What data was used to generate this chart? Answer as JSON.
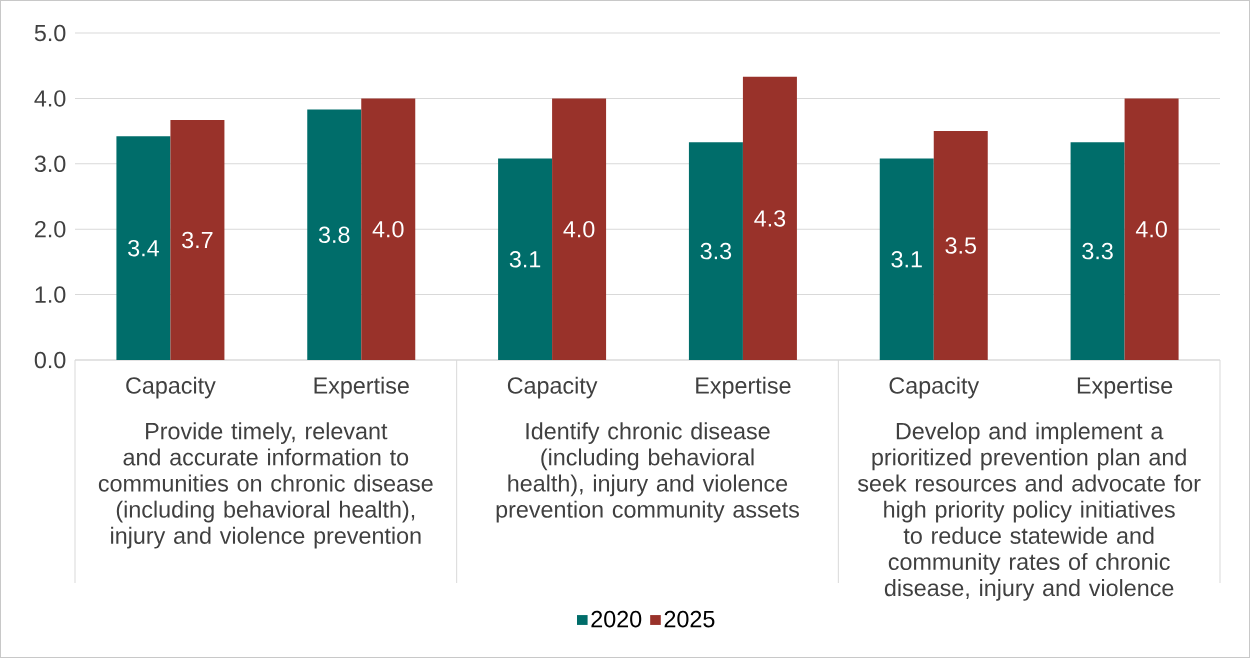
{
  "chart_data": {
    "type": "bar",
    "categories": [
      "Capacity",
      "Expertise",
      "Capacity",
      "Expertise",
      "Capacity",
      "Expertise"
    ],
    "annotations": [
      "Provide timely, relevant and accurate information to communities on chronic disease (including behavioral health), injury and violence prevention",
      "Identify chronic disease (including behavioral health), injury and violence prevention community assets",
      "Develop and implement a prioritized prevention plan and seek resources and advocate for high priority policy initiatives to reduce statewide and community rates of chronic disease, injury and violence"
    ],
    "series": [
      {
        "name": "2020",
        "color": "#006d6a",
        "values": [
          3.42,
          3.83,
          3.08,
          3.33,
          3.08,
          3.33
        ],
        "value_labels": [
          "3.4",
          "3.8",
          "3.1",
          "3.3",
          "3.1",
          "3.3"
        ]
      },
      {
        "name": "2025",
        "color": "#99322a",
        "values": [
          3.67,
          4.0,
          4.0,
          4.33,
          3.5,
          4.0
        ],
        "value_labels": [
          "3.7",
          "4.0",
          "4.0",
          "4.3",
          "3.5",
          "4.0"
        ]
      }
    ],
    "ylim": [
      0,
      5
    ],
    "yticks": [
      {
        "value": 0,
        "label": "0.0"
      },
      {
        "value": 1,
        "label": "1.0"
      },
      {
        "value": 2,
        "label": "2.0"
      },
      {
        "value": 3,
        "label": "3.0"
      },
      {
        "value": 4,
        "label": "4.0"
      },
      {
        "value": 5,
        "label": "5.0"
      }
    ],
    "grid": "y",
    "legend": "bottom"
  }
}
